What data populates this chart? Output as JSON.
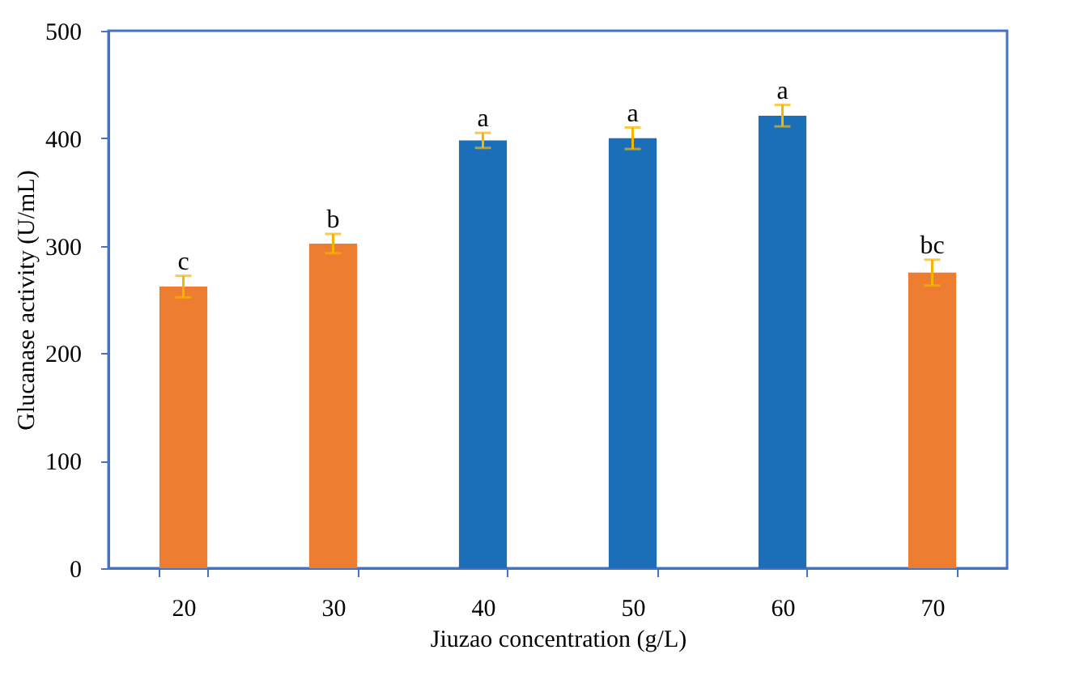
{
  "chart_data": {
    "type": "bar",
    "xlabel": "Jiuzao concentration (g/L)",
    "ylabel": "Glucanase activity (U/mL)",
    "categories": [
      "20",
      "30",
      "40",
      "50",
      "60",
      "70"
    ],
    "values": [
      262,
      302,
      398,
      400,
      421,
      275
    ],
    "errors": [
      10,
      9,
      7,
      10,
      10,
      12
    ],
    "colors": [
      "#ed7d31",
      "#ed7d31",
      "#1a6fb8",
      "#1a6fb8",
      "#1a6fb8",
      "#ed7d31"
    ],
    "ylim": [
      0,
      500
    ],
    "yticks": [
      0,
      100,
      200,
      300,
      400,
      500
    ],
    "grid": false,
    "annotations": [
      {
        "text": "c",
        "x": "20",
        "y": 272
      },
      {
        "text": "b",
        "x": "30",
        "y": 311
      },
      {
        "text": "a",
        "x": "40",
        "y": 405
      },
      {
        "text": "a",
        "x": "50",
        "y": 410
      },
      {
        "text": "a",
        "x": "60",
        "y": 431
      },
      {
        "text": "bc",
        "x": "70",
        "y": 287
      }
    ]
  }
}
